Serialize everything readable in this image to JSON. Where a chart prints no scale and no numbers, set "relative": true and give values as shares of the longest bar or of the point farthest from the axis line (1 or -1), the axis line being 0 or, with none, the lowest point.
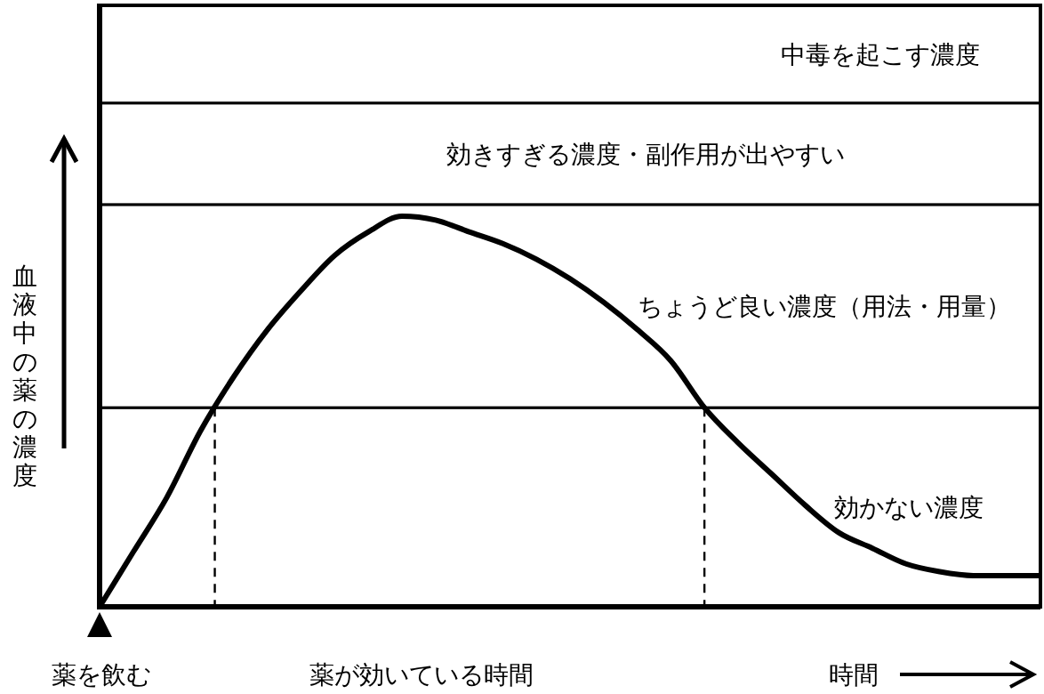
{
  "chart_data": {
    "type": "line",
    "relative": true,
    "xlabel": "時間",
    "ylabel": "血液中の薬の濃度",
    "categories": [
      null,
      null,
      null,
      null,
      null,
      null,
      null,
      null,
      null,
      null,
      null,
      null,
      null,
      null,
      null,
      null,
      null,
      null,
      null,
      null,
      null,
      null,
      null,
      null,
      null,
      null,
      null,
      null,
      null
    ],
    "series": [
      {
        "color": "#000000",
        "values": [
          0,
          0.14,
          0.28,
          0.45,
          0.59,
          0.71,
          0.81,
          0.9,
          0.96,
          1,
          0.99,
          0.96,
          0.93,
          0.89,
          0.84,
          0.78,
          0.71,
          0.63,
          0.51,
          0.42,
          0.34,
          0.26,
          0.19,
          0.15,
          0.11,
          0.09,
          0.08,
          0.08,
          0.08
        ]
      }
    ],
    "bands": [
      {
        "axis": "y",
        "from": 0,
        "to": 0.51,
        "label": "効かない濃度"
      },
      {
        "axis": "y",
        "from": 0.51,
        "to": 1.03,
        "label": "ちょうど良い濃度（用法・用量）"
      },
      {
        "axis": "y",
        "from": 1.03,
        "to": 1.29,
        "label": "効きすぎる濃度・副作用が出やすい"
      },
      {
        "axis": "y",
        "from": 1.29,
        "to": 1.54,
        "label": "中毒を起こす濃度"
      }
    ],
    "annotations": [
      "薬を飲む",
      "薬が効いている時間"
    ],
    "marker": "none",
    "line_style": "solid"
  }
}
